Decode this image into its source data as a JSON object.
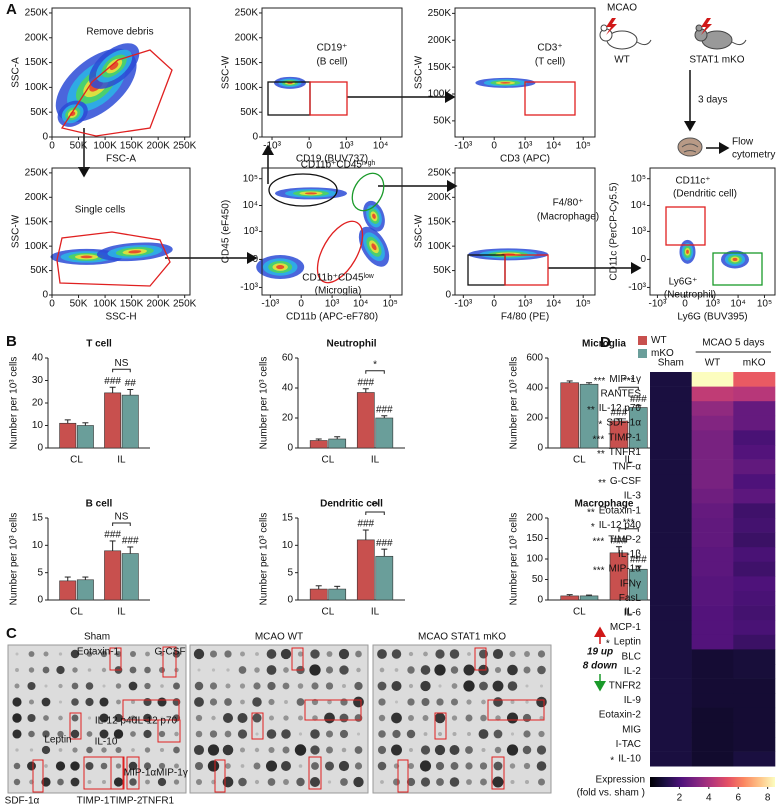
{
  "panel_labels": [
    "A",
    "B",
    "C",
    "D"
  ],
  "flow_plots": [
    {
      "x_label": "FSC-A",
      "y_label": "SSC-A",
      "x_scale": "linear",
      "y_scale": "linear",
      "xlim": [
        0,
        260000
      ],
      "ylim": [
        0,
        260000
      ],
      "xticks": [
        0,
        {
          "value": 50000,
          "label": "50K"
        },
        {
          "value": 100000,
          "label": "100K"
        },
        {
          "value": 150000,
          "label": "150K"
        },
        {
          "value": 200000,
          "label": "200K"
        },
        {
          "value": 250000,
          "label": "250K"
        }
      ],
      "yticks": [
        0,
        {
          "value": 50000,
          "label": "50K"
        },
        {
          "value": 100000,
          "label": "100K"
        },
        {
          "value": 150000,
          "label": "150K"
        },
        {
          "value": 200000,
          "label": "200K"
        },
        {
          "value": 250000,
          "label": "250K"
        }
      ],
      "gates": [
        {
          "lines": [
            "Remove debris"
          ],
          "color": "#e02020"
        }
      ]
    },
    {
      "x_label": "CD19 (BUV737)",
      "y_label": "SSC-W",
      "x_scale": "biex",
      "y_scale": "linear",
      "xlim": [
        -2000,
        40000
      ],
      "ylim": [
        0,
        260000
      ],
      "xticks": [
        {
          "value": -1000,
          "label": "-10³"
        },
        0,
        {
          "value": 1000,
          "label": "10³"
        },
        {
          "value": 10000,
          "label": "10⁴"
        }
      ],
      "yticks": [
        0,
        {
          "value": 50000,
          "label": "50K"
        },
        {
          "value": 100000,
          "label": "100K"
        },
        {
          "value": 150000,
          "label": "150K"
        },
        {
          "value": 200000,
          "label": "200K"
        },
        {
          "value": 250000,
          "label": "250K"
        }
      ],
      "gates": [
        {
          "lines": [
            "CD19⁺",
            "(B cell)"
          ],
          "color": "#e02020"
        }
      ]
    },
    {
      "x_label": "CD3 (APC)",
      "y_label": "SSC-W",
      "x_scale": "biex",
      "y_scale": "linear",
      "xlim": [
        -2000,
        250000
      ],
      "ylim": [
        20000,
        260000
      ],
      "xticks": [
        {
          "value": -1000,
          "label": "-10³"
        },
        0,
        {
          "value": 1000,
          "label": "10³"
        },
        {
          "value": 10000,
          "label": "10⁴"
        },
        {
          "value": 100000,
          "label": "10⁵"
        }
      ],
      "yticks": [
        {
          "value": 50000,
          "label": "50K"
        },
        {
          "value": 100000,
          "label": "100K"
        },
        {
          "value": 150000,
          "label": "150K"
        },
        {
          "value": 200000,
          "label": "200K"
        },
        {
          "value": 250000,
          "label": "250K"
        }
      ],
      "gates": [
        {
          "lines": [
            "CD3⁺",
            "(T cell)"
          ],
          "color": "#e02020"
        }
      ]
    },
    {
      "x_label": "SSC-H",
      "y_label": "SSC-W",
      "x_scale": "linear",
      "y_scale": "linear",
      "xlim": [
        0,
        260000
      ],
      "ylim": [
        0,
        260000
      ],
      "xticks": [
        0,
        {
          "value": 50000,
          "label": "50K"
        },
        {
          "value": 100000,
          "label": "100K"
        },
        {
          "value": 150000,
          "label": "150K"
        },
        {
          "value": 200000,
          "label": "200K"
        },
        {
          "value": 250000,
          "label": "250K"
        }
      ],
      "yticks": [
        0,
        {
          "value": 50000,
          "label": "50K"
        },
        {
          "value": 100000,
          "label": "100K"
        },
        {
          "value": 150000,
          "label": "150K"
        },
        {
          "value": 200000,
          "label": "200K"
        },
        {
          "value": 250000,
          "label": "250K"
        }
      ],
      "gates": [
        {
          "lines": [
            "Single cells"
          ],
          "color": "#e02020"
        }
      ]
    },
    {
      "x_label": "CD11b (APC-eF780)",
      "y_label": "CD45 (eF450)",
      "x_scale": "biex",
      "y_scale": "biex",
      "xlim": [
        -2000,
        250000
      ],
      "ylim": [
        -2000,
        250000
      ],
      "xticks": [
        {
          "value": -1000,
          "label": "-10³"
        },
        0,
        {
          "value": 1000,
          "label": "10³"
        },
        {
          "value": 10000,
          "label": "10⁴"
        },
        {
          "value": 100000,
          "label": "10⁵"
        }
      ],
      "yticks": [
        {
          "value": -1000,
          "label": "-10³"
        },
        0,
        {
          "value": 1000,
          "label": "10³"
        },
        {
          "value": 10000,
          "label": "10⁴"
        },
        {
          "value": 100000,
          "label": "10⁵"
        }
      ],
      "gates": [
        {
          "lines": [
            "CD11b⁺CD45ʰⁱᵍʰ"
          ],
          "color": "#1a9a2a"
        },
        {
          "lines": [
            "CD11b⁺CD45ˡᵒʷ",
            "(Microglia)"
          ],
          "color": "#e02020"
        }
      ]
    },
    {
      "x_label": "F4/80 (PE)",
      "y_label": "SSC-W",
      "x_scale": "biex",
      "y_scale": "linear",
      "xlim": [
        -2000,
        250000
      ],
      "ylim": [
        0,
        260000
      ],
      "xticks": [
        {
          "value": -1000,
          "label": "-10³"
        },
        0,
        {
          "value": 1000,
          "label": "10³"
        },
        {
          "value": 10000,
          "label": "10⁴"
        },
        {
          "value": 100000,
          "label": "10⁵"
        }
      ],
      "yticks": [
        0,
        {
          "value": 50000,
          "label": "50K"
        },
        {
          "value": 100000,
          "label": "100K"
        },
        {
          "value": 150000,
          "label": "150K"
        },
        {
          "value": 200000,
          "label": "200K"
        },
        {
          "value": 250000,
          "label": "250K"
        }
      ],
      "gates": [
        {
          "lines": [
            "F4/80⁺",
            "(Macrophage)"
          ],
          "color": "#e02020"
        }
      ]
    },
    {
      "x_label": "Ly6G (BUV395)",
      "y_label": "CD11c (PerCP-Cy5.5)",
      "x_scale": "biex",
      "y_scale": "biex",
      "xlim": [
        -2000,
        250000
      ],
      "ylim": [
        -2000,
        250000
      ],
      "xticks": [
        {
          "value": -1000,
          "label": "-10³"
        },
        0,
        {
          "value": 1000,
          "label": "10³"
        },
        {
          "value": 10000,
          "label": "10⁴"
        },
        {
          "value": 100000,
          "label": "10⁵"
        }
      ],
      "yticks": [
        {
          "value": -1000,
          "label": "-10³"
        },
        0,
        {
          "value": 1000,
          "label": "10³"
        },
        {
          "value": 10000,
          "label": "10⁴"
        },
        {
          "value": 100000,
          "label": "10⁵"
        }
      ],
      "gates": [
        {
          "lines": [
            "CD11c⁺",
            "(Dendritic cell)"
          ],
          "color": "#e02020"
        },
        {
          "lines": [
            "Ly6G⁺",
            "(Neutrophil)"
          ],
          "color": "#1a9a2a"
        }
      ]
    }
  ],
  "schematic": {
    "mcao": "MCAO",
    "wt": "WT",
    "ko": "STAT1 mKO",
    "days": "3 days",
    "flow": [
      "Flow",
      "cytometry"
    ]
  },
  "chart_data": [
    {
      "type": "bar",
      "title": "T cell",
      "y_label": "Number per 10³ cells",
      "categories": [
        "CL",
        "IL"
      ],
      "ylim": [
        0,
        40
      ],
      "yticks": [
        0,
        10,
        20,
        30,
        40
      ],
      "legend": false,
      "comparison": "NS",
      "series": [
        {
          "name": "WT",
          "color": "#c8504e",
          "values": [
            11,
            24.5
          ],
          "errors": [
            1.5,
            2.5
          ],
          "annotation": "###"
        },
        {
          "name": "mKO",
          "color": "#6a9e9a",
          "values": [
            10,
            23.5
          ],
          "errors": [
            1.2,
            2.5
          ],
          "annotation": "##"
        }
      ]
    },
    {
      "type": "bar",
      "title": "Neutrophil",
      "y_label": "Number per 10³ cells",
      "categories": [
        "CL",
        "IL"
      ],
      "ylim": [
        0,
        60
      ],
      "yticks": [
        0,
        20,
        40,
        60
      ],
      "legend": false,
      "comparison": "*",
      "series": [
        {
          "name": "WT",
          "color": "#c8504e",
          "values": [
            5,
            37
          ],
          "errors": [
            1,
            2.5
          ],
          "annotation": "###"
        },
        {
          "name": "mKO",
          "color": "#6a9e9a",
          "values": [
            6,
            20
          ],
          "errors": [
            1.5,
            1.5
          ],
          "annotation": "###"
        }
      ]
    },
    {
      "type": "bar",
      "title": "Microglia",
      "y_label": "Number per 10³ cells",
      "categories": [
        "CL",
        "IL"
      ],
      "ylim": [
        0,
        600
      ],
      "yticks": [
        0,
        200,
        400,
        600
      ],
      "legend": true,
      "comparison": "***",
      "series": [
        {
          "name": "WT",
          "color": "#c8504e",
          "values": [
            435,
            180
          ],
          "errors": [
            12,
            15
          ],
          "annotation": "###"
        },
        {
          "name": "mKO",
          "color": "#6a9e9a",
          "values": [
            425,
            270
          ],
          "errors": [
            10,
            15
          ],
          "annotation": "###"
        }
      ]
    },
    {
      "type": "bar",
      "title": "B cell",
      "y_label": "Number per 10³ cells",
      "categories": [
        "CL",
        "IL"
      ],
      "ylim": [
        0,
        15
      ],
      "yticks": [
        0,
        5,
        10,
        15
      ],
      "legend": false,
      "comparison": "NS",
      "series": [
        {
          "name": "WT",
          "color": "#c8504e",
          "values": [
            3.5,
            9
          ],
          "errors": [
            0.7,
            1.8
          ],
          "annotation": "###"
        },
        {
          "name": "mKO",
          "color": "#6a9e9a",
          "values": [
            3.7,
            8.5
          ],
          "errors": [
            0.5,
            1.2
          ],
          "annotation": "###"
        }
      ]
    },
    {
      "type": "bar",
      "title": "Dendritic cell",
      "y_label": "Number per 10³ cells",
      "categories": [
        "CL",
        "IL"
      ],
      "ylim": [
        0,
        15
      ],
      "yticks": [
        0,
        5,
        10,
        15
      ],
      "legend": false,
      "comparison": "**",
      "series": [
        {
          "name": "WT",
          "color": "#c8504e",
          "values": [
            2,
            11
          ],
          "errors": [
            0.6,
            1.8
          ],
          "annotation": "###"
        },
        {
          "name": "mKO",
          "color": "#6a9e9a",
          "values": [
            2,
            8
          ],
          "errors": [
            0.5,
            1.3
          ],
          "annotation": "###"
        }
      ]
    },
    {
      "type": "bar",
      "title": "Macrophage",
      "y_label": "Number per 10³ cells",
      "categories": [
        "CL",
        "IL"
      ],
      "ylim": [
        0,
        200
      ],
      "yticks": [
        0,
        50,
        100,
        150,
        200
      ],
      "legend": false,
      "comparison": "***",
      "series": [
        {
          "name": "WT",
          "color": "#c8504e",
          "values": [
            10,
            115
          ],
          "errors": [
            3,
            15
          ],
          "annotation": "###"
        },
        {
          "name": "mKO",
          "color": "#6a9e9a",
          "values": [
            10,
            75
          ],
          "errors": [
            2,
            8
          ],
          "annotation": "###"
        }
      ]
    },
    {
      "type": "heatmap",
      "header": "MCAO 5 days",
      "columns": [
        "Sham",
        "WT",
        "mKO"
      ],
      "rows": [
        "MIP-1γ",
        "RANTES",
        "IL-12 p70",
        "SDF-1α",
        "TIMP-1",
        "TNFR1",
        "TNF-α",
        "G-CSF",
        "IL-3",
        "Eotaxin-1",
        "IL-12 p40",
        "TIMP-2",
        "IL-1β",
        "MIP-1α",
        "IFNγ",
        "FasL",
        "IL-6",
        "MCP-1",
        "Leptin",
        "BLC",
        "IL-2",
        "TNFR2",
        "IL-9",
        "Eotaxin-2",
        "MIG",
        "I-TAC",
        "IL-10"
      ],
      "row_marks": [
        "***",
        null,
        "**",
        "*",
        "***",
        "**",
        null,
        "**",
        null,
        "**",
        "*",
        "***",
        null,
        "***",
        null,
        null,
        null,
        null,
        "*",
        null,
        null,
        null,
        null,
        null,
        null,
        null,
        "*"
      ],
      "values": [
        [
          1,
          8.5,
          5.5
        ],
        [
          1,
          4.5,
          4.3
        ],
        [
          1,
          3.5,
          2.6
        ],
        [
          1,
          3.2,
          2.6
        ],
        [
          1,
          3.0,
          2.0
        ],
        [
          1,
          3.0,
          2.2
        ],
        [
          1,
          3.0,
          2.5
        ],
        [
          1,
          3.0,
          2.1
        ],
        [
          1,
          2.8,
          2.4
        ],
        [
          1,
          2.6,
          1.8
        ],
        [
          1,
          2.5,
          1.9
        ],
        [
          1,
          2.5,
          1.7
        ],
        [
          1,
          2.4,
          2.0
        ],
        [
          1,
          2.4,
          1.8
        ],
        [
          1,
          2.3,
          2.1
        ],
        [
          1,
          2.3,
          2.0
        ],
        [
          1,
          2.2,
          1.9
        ],
        [
          1,
          2.2,
          2.0
        ],
        [
          1,
          2.2,
          1.7
        ],
        [
          1,
          0.8,
          0.9
        ],
        [
          1,
          0.8,
          0.9
        ],
        [
          1,
          0.8,
          0.8
        ],
        [
          1,
          0.8,
          0.8
        ],
        [
          1,
          0.7,
          0.8
        ],
        [
          1,
          0.7,
          0.8
        ],
        [
          1,
          0.7,
          0.8
        ],
        [
          1,
          0.7,
          1.0
        ]
      ],
      "colormap": "magma",
      "clim": [
        0,
        8.5
      ],
      "cticks": [
        2,
        4,
        6,
        8
      ],
      "colorbar_title": "Expression",
      "colorbar_subtitle": "(fold vs. sham )",
      "up_label": "19 up",
      "down_label": "8 down"
    }
  ],
  "blots": {
    "titles": [
      "Sham",
      "MCAO  WT",
      "MCAO  STAT1 mKO"
    ],
    "labels": [
      "Eotaxin-1",
      "G-CSF",
      "IL-12 p40",
      "IL-12 p70",
      "IL-10",
      "Leptin",
      "MIP-1α",
      "MIP-1γ",
      "SDF-1α",
      "TIMP-1",
      "TIMP-2",
      "TNFR1"
    ]
  }
}
